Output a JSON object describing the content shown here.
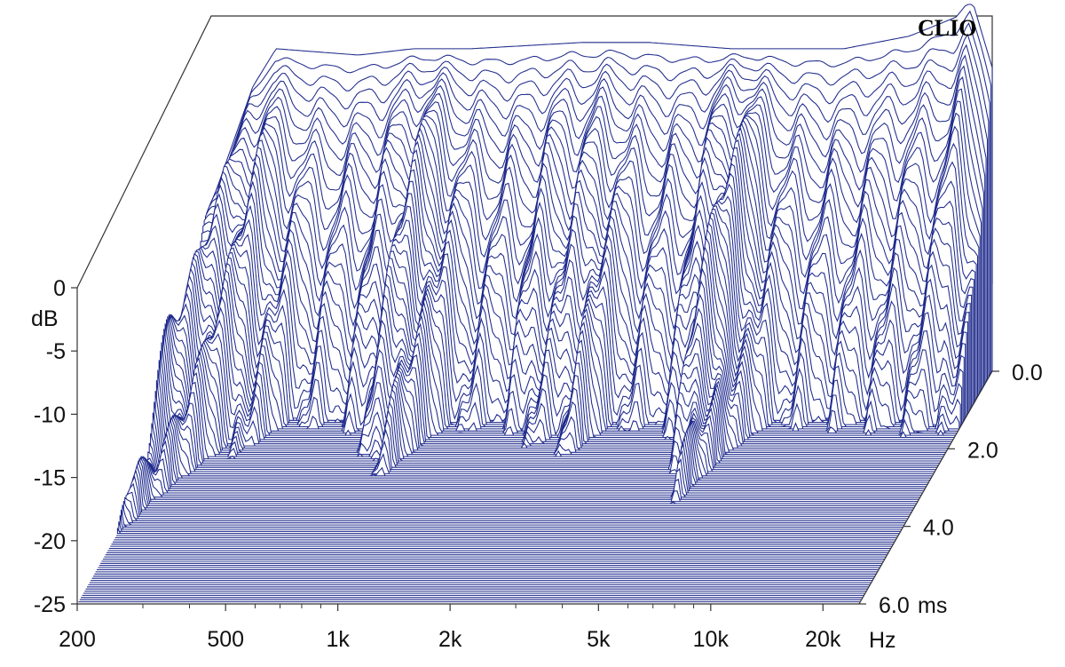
{
  "chart_data": {
    "type": "waterfall",
    "brand": "CLIO",
    "colors": {
      "trace": "#1e2a8c",
      "frame": "#333333",
      "background": "#ffffff"
    },
    "x_axis": {
      "scale": "log",
      "range_hz": [
        200,
        25000
      ],
      "unit": "Hz",
      "tick_labels": [
        {
          "hz": 200,
          "label": "200"
        },
        {
          "hz": 500,
          "label": "500"
        },
        {
          "hz": 1000,
          "label": "1k"
        },
        {
          "hz": 2000,
          "label": "2k"
        },
        {
          "hz": 5000,
          "label": "5k"
        },
        {
          "hz": 10000,
          "label": "10k"
        },
        {
          "hz": 20000,
          "label": "20k"
        }
      ],
      "minor_ticks_hz": [
        300,
        400,
        600,
        700,
        800,
        900,
        3000,
        4000,
        6000,
        7000,
        8000,
        9000
      ]
    },
    "y_axis": {
      "unit": "dB",
      "range_db": [
        -25,
        0
      ],
      "tick_labels": [
        {
          "db": 0,
          "label": "0"
        },
        {
          "db": -5,
          "label": "-5"
        },
        {
          "db": -10,
          "label": "-10"
        },
        {
          "db": -15,
          "label": "-15"
        },
        {
          "db": -20,
          "label": "-20"
        },
        {
          "db": -25,
          "label": "-25"
        }
      ]
    },
    "time_axis": {
      "unit": "ms",
      "range_ms": [
        0,
        6
      ],
      "tick_labels": [
        {
          "ms": 0,
          "label": "0.0"
        },
        {
          "ms": 2,
          "label": "2.0"
        },
        {
          "ms": 4,
          "label": "4.0"
        },
        {
          "ms": 6,
          "label": "6.0"
        }
      ]
    },
    "slice_count": 110,
    "initial_response_db": [
      {
        "hz": 200,
        "db": -12
      },
      {
        "hz": 260,
        "db": -2.5
      },
      {
        "hz": 300,
        "db": 0.5
      },
      {
        "hz": 500,
        "db": 0
      },
      {
        "hz": 700,
        "db": 0.5
      },
      {
        "hz": 1000,
        "db": 0.5
      },
      {
        "hz": 2000,
        "db": 1
      },
      {
        "hz": 3000,
        "db": 1
      },
      {
        "hz": 5000,
        "db": 0.5
      },
      {
        "hz": 7000,
        "db": 0.5
      },
      {
        "hz": 10000,
        "db": 0.5
      },
      {
        "hz": 15000,
        "db": 1.5
      },
      {
        "hz": 20000,
        "db": 3
      },
      {
        "hz": 22000,
        "db": 4.5
      },
      {
        "hz": 25000,
        "db": -1
      }
    ]
  }
}
